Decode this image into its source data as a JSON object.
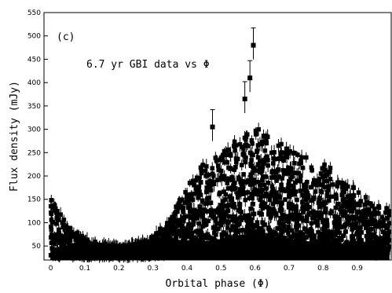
{
  "chart_data": {
    "type": "scatter",
    "title": "",
    "xlabel": "Orbital  phase (Φ)",
    "ylabel": "Flux density (mJy)",
    "panel_label": "(c)",
    "annotation": "6.7 yr GBI data  vs Φ",
    "xlim": [
      -0.02,
      1.0
    ],
    "ylim": [
      20,
      550
    ],
    "x_ticks": [
      0,
      0.1,
      0.2,
      0.3,
      0.4,
      0.5,
      0.6,
      0.7,
      0.8,
      0.9
    ],
    "x_tick_labels": [
      "0",
      "0.1",
      "0.2",
      "0.3",
      "0.4",
      "0.5",
      "0.6",
      "0.7",
      "0.8",
      "0.9"
    ],
    "y_ticks": [
      50,
      100,
      150,
      200,
      250,
      300,
      350,
      400,
      450,
      500,
      550
    ],
    "y_tick_labels": [
      "50",
      "100",
      "150",
      "200",
      "250",
      "300",
      "350",
      "400",
      "450",
      "500",
      "550"
    ],
    "marker": "filled-square",
    "marker_color": "#000000",
    "envelope": {
      "phase": [
        0.0,
        0.02,
        0.05,
        0.1,
        0.15,
        0.2,
        0.25,
        0.3,
        0.35,
        0.4,
        0.45,
        0.5,
        0.55,
        0.6,
        0.65,
        0.7,
        0.75,
        0.8,
        0.85,
        0.9,
        0.95,
        1.0
      ],
      "upper_flux": [
        150,
        130,
        95,
        65,
        55,
        50,
        55,
        70,
        110,
        180,
        230,
        250,
        280,
        320,
        290,
        260,
        240,
        230,
        200,
        170,
        140,
        130
      ],
      "lower_flux": [
        30,
        30,
        30,
        30,
        30,
        30,
        30,
        30,
        35,
        40,
        45,
        50,
        55,
        60,
        55,
        50,
        45,
        45,
        40,
        40,
        35,
        35
      ]
    },
    "outliers": [
      {
        "x": 0.475,
        "y": 305
      },
      {
        "x": 0.57,
        "y": 365
      },
      {
        "x": 0.585,
        "y": 410
      },
      {
        "x": 0.595,
        "y": 480
      }
    ]
  }
}
